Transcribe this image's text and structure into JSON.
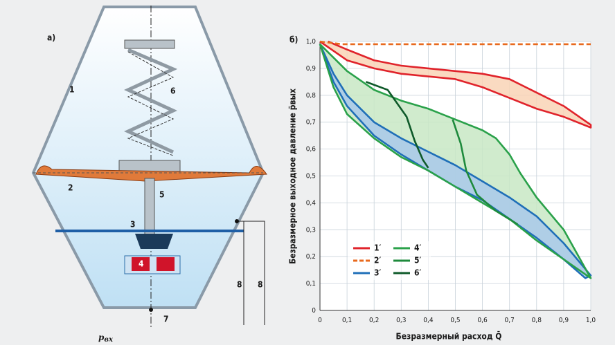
{
  "diagram": {
    "panel_label": "а)",
    "labels": {
      "n1": "1",
      "n2": "2",
      "n3": "3",
      "n4": "4",
      "n5": "5",
      "n6": "6",
      "n7": "7",
      "n8a": "8",
      "n8b": "8"
    },
    "input_symbol": "p",
    "input_subscript": "вх"
  },
  "chart_data": {
    "type": "line",
    "panel_label": "б)",
    "x_label": "Безразмерный расход Q̄",
    "y_label": "Безразмерное выходное давление p̄вых",
    "xlim": [
      0,
      1
    ],
    "ylim": [
      0,
      1
    ],
    "xticks": [
      0,
      {
        "value": 0.1,
        "label": "0,1"
      },
      {
        "value": 0.2,
        "label": "0,2"
      },
      {
        "value": 0.3,
        "label": "0,3"
      },
      {
        "value": 0.4,
        "label": "0,4"
      },
      {
        "value": 0.5,
        "label": "0,5"
      },
      {
        "value": 0.6,
        "label": "0,6"
      },
      {
        "value": 0.7,
        "label": "0,7"
      },
      {
        "value": 0.8,
        "label": "0,8"
      },
      {
        "value": 0.9,
        "label": "0,9"
      },
      {
        "value": 1,
        "label": "1,0"
      }
    ],
    "yticks": [
      0,
      {
        "value": 0.1,
        "label": "0,1"
      },
      {
        "value": 0.2,
        "label": "0,2"
      },
      {
        "value": 0.3,
        "label": "0,3"
      },
      {
        "value": 0.4,
        "label": "0,4"
      },
      {
        "value": 0.5,
        "label": "0,5"
      },
      {
        "value": 0.6,
        "label": "0,6"
      },
      {
        "value": 0.7,
        "label": "0,7"
      },
      {
        "value": 0.8,
        "label": "0,8"
      },
      {
        "value": 0.9,
        "label": "0,9"
      },
      {
        "value": 1,
        "label": "1,0"
      }
    ],
    "grid": true,
    "legend": "lower left",
    "series": [
      {
        "name": "1′",
        "color": "#e0232b",
        "fill": "#f9d3b6",
        "x": [
          0,
          0.1,
          0.2,
          0.3,
          0.4,
          0.5,
          0.6,
          0.7,
          0.8,
          0.9,
          1,
          1,
          0.9,
          0.8,
          0.7,
          0.6,
          0.5,
          0.4,
          0.3,
          0.2,
          0.1,
          0.03
        ],
        "values": [
          1,
          0.93,
          0.9,
          0.88,
          0.87,
          0.86,
          0.83,
          0.79,
          0.75,
          0.72,
          0.68,
          0.69,
          0.76,
          0.81,
          0.86,
          0.88,
          0.89,
          0.9,
          0.91,
          0.93,
          0.97,
          1
        ]
      },
      {
        "name": "2′",
        "color": "#e86a1e",
        "dashed": true,
        "x": [
          0,
          0.08,
          1
        ],
        "values": [
          1,
          0.99,
          0.99
        ]
      },
      {
        "name": "3′",
        "color": "#1f6fb8",
        "fill": "#a9c9ea",
        "x": [
          0,
          0.05,
          0.1,
          0.2,
          0.3,
          0.4,
          0.5,
          0.6,
          0.7,
          0.8,
          0.9,
          0.98,
          1,
          0.9,
          0.8,
          0.7,
          0.6,
          0.5,
          0.4,
          0.3,
          0.2,
          0.1,
          0.05,
          0
        ],
        "values": [
          0.99,
          0.85,
          0.76,
          0.65,
          0.58,
          0.52,
          0.46,
          0.41,
          0.34,
          0.27,
          0.19,
          0.12,
          0.13,
          0.25,
          0.35,
          0.42,
          0.48,
          0.54,
          0.59,
          0.64,
          0.7,
          0.8,
          0.88,
          0.99
        ]
      },
      {
        "name": "4′",
        "color": "#2aa14a",
        "fill": "#c8e8c4",
        "x": [
          0,
          0.05,
          0.1,
          0.2,
          0.3,
          0.4,
          0.5,
          0.6,
          0.7,
          0.8,
          0.9,
          1,
          0.9,
          0.8,
          0.74,
          0.7,
          0.65,
          0.6,
          0.5,
          0.4,
          0.3,
          0.2,
          0.1,
          0.05,
          0
        ],
        "values": [
          0.99,
          0.83,
          0.73,
          0.64,
          0.57,
          0.52,
          0.46,
          0.4,
          0.34,
          0.26,
          0.19,
          0.12,
          0.3,
          0.42,
          0.51,
          0.58,
          0.64,
          0.67,
          0.71,
          0.75,
          0.78,
          0.82,
          0.89,
          0.94,
          0.99
        ]
      },
      {
        "name": "5′",
        "color": "#1e8a3c",
        "x": [
          0.49,
          0.52,
          0.54,
          0.58,
          0.65,
          0.73
        ],
        "values": [
          0.71,
          0.62,
          0.52,
          0.43,
          0.37,
          0.32
        ]
      },
      {
        "name": "6′",
        "color": "#0f5a2a",
        "x": [
          0.17,
          0.25,
          0.32,
          0.35,
          0.38,
          0.4
        ],
        "values": [
          0.85,
          0.82,
          0.72,
          0.63,
          0.56,
          0.53
        ]
      }
    ]
  }
}
